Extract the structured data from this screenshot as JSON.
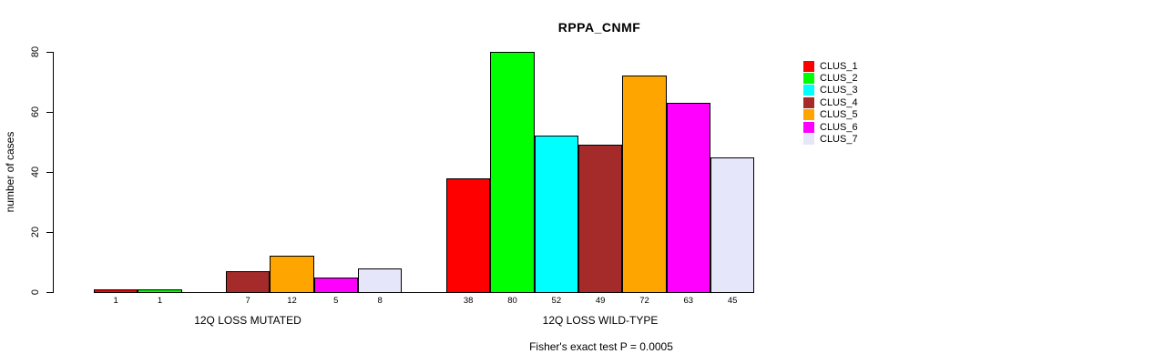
{
  "chart_data": {
    "type": "bar",
    "title": "RPPA_CNMF",
    "ylabel": "number of cases",
    "xlabel": "",
    "ylim": [
      0,
      80
    ],
    "yticks": [
      0,
      20,
      40,
      60,
      80
    ],
    "grid": false,
    "legend_position": "right",
    "legend": [
      {
        "label": "CLUS_1",
        "color": "#FF0000"
      },
      {
        "label": "CLUS_2",
        "color": "#00FF00"
      },
      {
        "label": "CLUS_3",
        "color": "#00FFFF"
      },
      {
        "label": "CLUS_4",
        "color": "#A52A2A"
      },
      {
        "label": "CLUS_5",
        "color": "#FFA500"
      },
      {
        "label": "CLUS_6",
        "color": "#FF00FF"
      },
      {
        "label": "CLUS_7",
        "color": "#E6E6FA"
      }
    ],
    "groups": [
      {
        "label": "12Q LOSS MUTATED",
        "values": [
          1,
          1,
          0,
          7,
          12,
          5,
          8
        ]
      },
      {
        "label": "12Q LOSS WILD-TYPE",
        "values": [
          38,
          80,
          52,
          49,
          72,
          63,
          45
        ]
      }
    ],
    "bar_value_labels_visible": true,
    "zero_bars_hidden": true,
    "footer": "Fisher's exact test P = 0.0005",
    "axis_color": "#000000",
    "bar_border_color": "#000000"
  }
}
